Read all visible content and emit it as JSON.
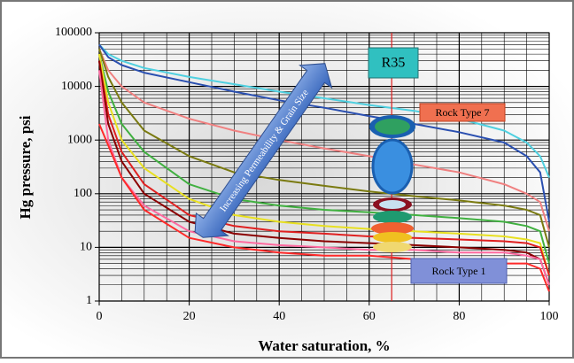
{
  "chart_data": {
    "type": "line",
    "xlabel": "Water saturation, %",
    "ylabel": "Hg pressure, psi",
    "xlim": [
      0,
      100
    ],
    "ylim": [
      1,
      100000
    ],
    "log_y": true,
    "grid": true,
    "xticks": [
      0,
      20,
      40,
      60,
      80,
      100
    ],
    "yticks": [
      1,
      10,
      100,
      1000,
      10000,
      100000
    ],
    "x": [
      0,
      2,
      5,
      10,
      20,
      30,
      40,
      50,
      60,
      70,
      80,
      90,
      95,
      98,
      100
    ],
    "series": [
      {
        "color": "#4fd0e0",
        "values": [
          60000,
          40000,
          30000,
          22000,
          15000,
          11000,
          8000,
          6000,
          4500,
          3500,
          2500,
          1500,
          900,
          500,
          200
        ]
      },
      {
        "color": "#2a4fb0",
        "values": [
          60000,
          35000,
          25000,
          18000,
          12000,
          8000,
          5500,
          4000,
          2800,
          2000,
          1400,
          900,
          500,
          250,
          30
        ]
      },
      {
        "color": "#f08080",
        "values": [
          50000,
          20000,
          10000,
          5000,
          2500,
          1500,
          1000,
          700,
          500,
          350,
          250,
          150,
          100,
          70,
          20
        ]
      },
      {
        "color": "#7a7a10",
        "values": [
          50000,
          15000,
          5000,
          1500,
          500,
          250,
          180,
          140,
          110,
          90,
          75,
          60,
          50,
          40,
          10
        ]
      },
      {
        "color": "#40b040",
        "values": [
          40000,
          8000,
          2000,
          600,
          150,
          80,
          60,
          50,
          45,
          40,
          35,
          30,
          25,
          20,
          5
        ]
      },
      {
        "color": "#e8e020",
        "values": [
          40000,
          5000,
          1000,
          300,
          80,
          40,
          30,
          25,
          22,
          20,
          18,
          16,
          14,
          12,
          3
        ]
      },
      {
        "color": "#e02020",
        "values": [
          30000,
          3000,
          600,
          150,
          40,
          25,
          20,
          18,
          16,
          15,
          14,
          13,
          12,
          10,
          3
        ]
      },
      {
        "color": "#8b0000",
        "values": [
          30000,
          2000,
          400,
          100,
          30,
          18,
          15,
          13,
          12,
          11,
          10,
          9,
          8,
          6,
          2
        ]
      },
      {
        "color": "#ff6aa0",
        "values": [
          20000,
          1000,
          200,
          60,
          20,
          13,
          11,
          10,
          9,
          9,
          8,
          8,
          7,
          6,
          2
        ]
      },
      {
        "color": "#ff2a2a",
        "values": [
          2000,
          800,
          200,
          50,
          15,
          10,
          8,
          7,
          7,
          6,
          6,
          5,
          5,
          4,
          1.5
        ]
      }
    ],
    "reference_line": {
      "x": 65,
      "color": "#e02020"
    },
    "annotations": [
      {
        "text": "R35"
      },
      {
        "text": "Rock Type 7"
      },
      {
        "text": "Rock Type 1"
      },
      {
        "text": "Increasing Permeability & Grain Size"
      }
    ]
  }
}
